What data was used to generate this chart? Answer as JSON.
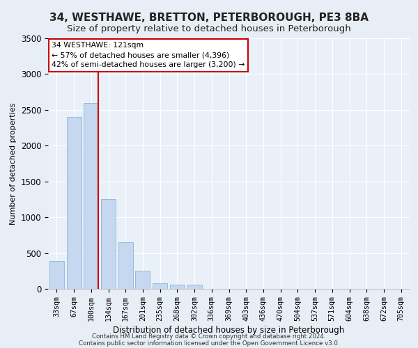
{
  "title": "34, WESTHAWE, BRETTON, PETERBOROUGH, PE3 8BA",
  "subtitle": "Size of property relative to detached houses in Peterborough",
  "xlabel": "Distribution of detached houses by size in Peterborough",
  "ylabel": "Number of detached properties",
  "footnote1": "Contains HM Land Registry data © Crown copyright and database right 2024.",
  "footnote2": "Contains public sector information licensed under the Open Government Licence v3.0.",
  "categories": [
    "33sqm",
    "67sqm",
    "100sqm",
    "134sqm",
    "167sqm",
    "201sqm",
    "235sqm",
    "268sqm",
    "302sqm",
    "336sqm",
    "369sqm",
    "403sqm",
    "436sqm",
    "470sqm",
    "504sqm",
    "537sqm",
    "571sqm",
    "604sqm",
    "638sqm",
    "672sqm",
    "705sqm"
  ],
  "values": [
    390,
    2400,
    2600,
    1250,
    650,
    250,
    80,
    60,
    55,
    0,
    0,
    0,
    0,
    0,
    0,
    0,
    0,
    0,
    0,
    0,
    0
  ],
  "bar_color": "#c5d8f0",
  "bar_edge_color": "#7aadd4",
  "vline_x_index": 2,
  "vline_color": "#cc0000",
  "annotation_text": "34 WESTHAWE: 121sqm\n← 57% of detached houses are smaller (4,396)\n42% of semi-detached houses are larger (3,200) →",
  "annotation_box_color": "#ffffff",
  "annotation_box_edge": "#cc0000",
  "ylim": [
    0,
    3500
  ],
  "yticks": [
    0,
    500,
    1000,
    1500,
    2000,
    2500,
    3000,
    3500
  ],
  "background_color": "#e8eef5",
  "plot_bg_color": "#eaf0f8",
  "title_fontsize": 11,
  "subtitle_fontsize": 9.5
}
